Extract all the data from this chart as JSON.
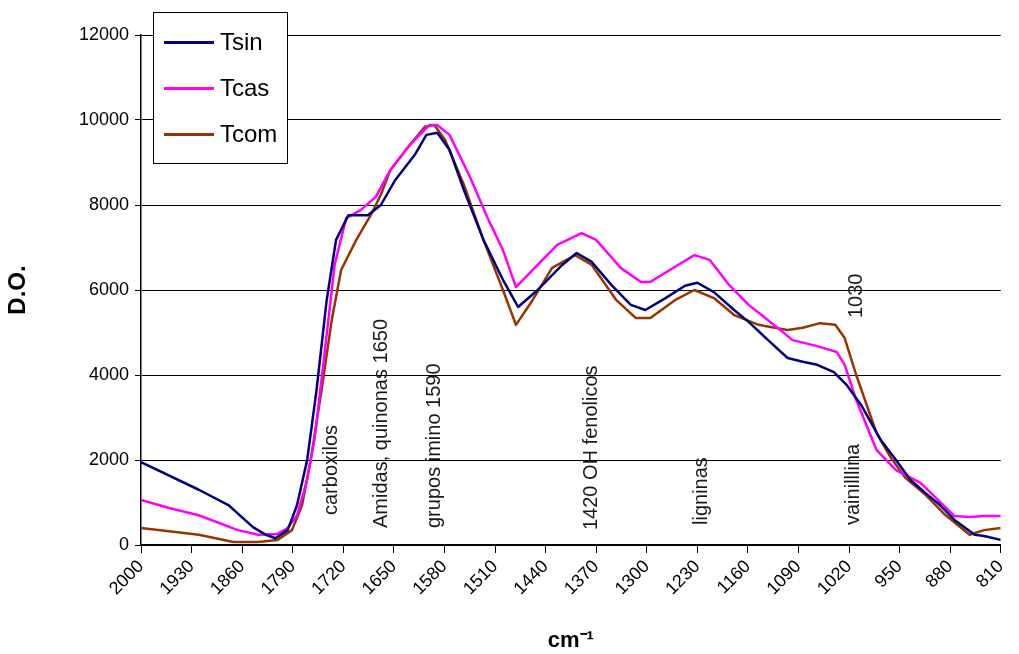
{
  "chart_data": {
    "type": "line",
    "xlabel": "cm⁻¹",
    "ylabel": "D.O.",
    "xlim": [
      2000,
      810
    ],
    "ylim": [
      0,
      12000
    ],
    "xticks": [
      2000,
      1930,
      1860,
      1790,
      1720,
      1650,
      1580,
      1510,
      1440,
      1370,
      1300,
      1230,
      1160,
      1090,
      1020,
      950,
      880,
      810
    ],
    "yticks": [
      0,
      2000,
      4000,
      6000,
      8000,
      10000,
      12000
    ],
    "grid": "y",
    "legend": "top left",
    "series": [
      {
        "name": "Tsin",
        "color": "#000080",
        "x": [
          2000,
          1920,
          1879,
          1845,
          1827,
          1814,
          1797,
          1784,
          1770,
          1757,
          1743,
          1730,
          1713,
          1686,
          1668,
          1648,
          1621,
          1605,
          1590,
          1573,
          1553,
          1526,
          1499,
          1478,
          1451,
          1417,
          1397,
          1376,
          1349,
          1322,
          1302,
          1274,
          1247,
          1230,
          1207,
          1179,
          1159,
          1132,
          1105,
          1084,
          1064,
          1041,
          1023,
          1003,
          976,
          955,
          935,
          914,
          894,
          874,
          846,
          833,
          810
        ],
        "values": [
          1950,
          1300,
          940,
          420,
          240,
          160,
          350,
          940,
          2000,
          3650,
          5760,
          7180,
          7760,
          7760,
          8000,
          8590,
          9180,
          9650,
          9700,
          9300,
          8350,
          7180,
          6240,
          5600,
          6000,
          6590,
          6870,
          6660,
          6120,
          5650,
          5530,
          5810,
          6100,
          6170,
          5950,
          5530,
          5250,
          4820,
          4400,
          4310,
          4240,
          4070,
          3760,
          3290,
          2470,
          2000,
          1530,
          1220,
          940,
          590,
          240,
          210,
          120
        ]
      },
      {
        "name": "Tcas",
        "color": "#ff00ff",
        "x": [
          2000,
          1961,
          1920,
          1866,
          1838,
          1811,
          1797,
          1784,
          1770,
          1760,
          1747,
          1732,
          1716,
          1696,
          1675,
          1655,
          1628,
          1601,
          1590,
          1573,
          1546,
          1519,
          1499,
          1481,
          1451,
          1424,
          1390,
          1370,
          1336,
          1308,
          1295,
          1268,
          1234,
          1213,
          1186,
          1159,
          1132,
          1098,
          1064,
          1037,
          1026,
          1010,
          982,
          955,
          921,
          901,
          874,
          853,
          833,
          810
        ],
        "values": [
          1060,
          870,
          700,
          350,
          240,
          260,
          400,
          700,
          1530,
          2470,
          4350,
          6590,
          7690,
          7880,
          8190,
          8820,
          9410,
          9880,
          9880,
          9650,
          8710,
          7650,
          6940,
          6070,
          6590,
          7060,
          7340,
          7180,
          6520,
          6190,
          6190,
          6470,
          6820,
          6710,
          6120,
          5650,
          5290,
          4820,
          4680,
          4540,
          4240,
          3410,
          2240,
          1760,
          1460,
          1130,
          680,
          660,
          680,
          680
        ]
      },
      {
        "name": "Tcom",
        "color": "#993300",
        "x": [
          2000,
          1920,
          1872,
          1838,
          1811,
          1791,
          1777,
          1764,
          1750,
          1736,
          1723,
          1702,
          1682,
          1668,
          1655,
          1628,
          1607,
          1594,
          1579,
          1553,
          1526,
          1499,
          1481,
          1458,
          1431,
          1399,
          1376,
          1342,
          1315,
          1295,
          1261,
          1234,
          1207,
          1179,
          1145,
          1105,
          1084,
          1060,
          1039,
          1026,
          1010,
          982,
          962,
          942,
          914,
          887,
          853,
          833,
          810
        ],
        "values": [
          400,
          240,
          70,
          70,
          120,
          350,
          940,
          2120,
          3650,
          5290,
          6470,
          7180,
          7760,
          8240,
          8820,
          9410,
          9840,
          9880,
          9530,
          8470,
          7180,
          6000,
          5180,
          5760,
          6520,
          6820,
          6590,
          5760,
          5340,
          5340,
          5760,
          6000,
          5810,
          5410,
          5180,
          5060,
          5110,
          5220,
          5180,
          4870,
          4000,
          2640,
          2050,
          1580,
          1180,
          710,
          240,
          350,
          400
        ]
      }
    ],
    "annotations": [
      "carboxilos",
      "Amidas, quinonas 1650",
      "grupos imino 1590",
      "1420 OH fenolicos",
      "ligninas",
      "1030",
      "vainilllina"
    ]
  }
}
